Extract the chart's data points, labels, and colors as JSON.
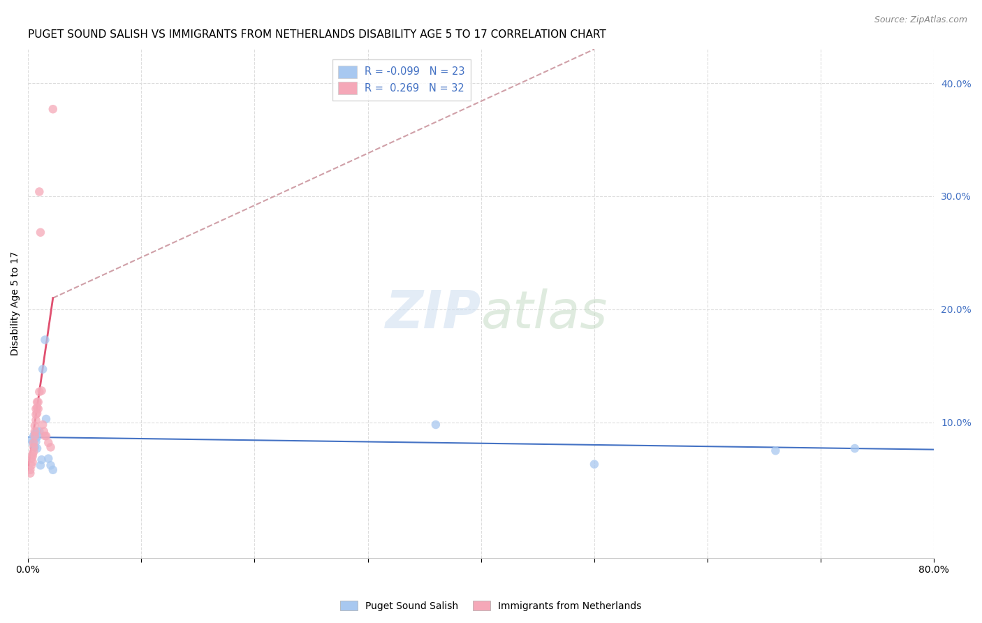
{
  "title": "PUGET SOUND SALISH VS IMMIGRANTS FROM NETHERLANDS DISABILITY AGE 5 TO 17 CORRELATION CHART",
  "source": "Source: ZipAtlas.com",
  "ylabel": "Disability Age 5 to 17",
  "xlabel": "",
  "xlim": [
    0,
    0.8
  ],
  "ylim": [
    -0.02,
    0.43
  ],
  "xticks": [
    0.0,
    0.1,
    0.2,
    0.3,
    0.4,
    0.5,
    0.6,
    0.7,
    0.8
  ],
  "xtick_labels_show": [
    "0.0%",
    "",
    "",
    "",
    "",
    "",
    "",
    "",
    "80.0%"
  ],
  "yticks_right": [
    0.1,
    0.2,
    0.3,
    0.4
  ],
  "background_color": "#ffffff",
  "grid_color": "#dddddd",
  "series": [
    {
      "name": "Puget Sound Salish",
      "color": "#a8c8f0",
      "R": -0.099,
      "N": 23,
      "x": [
        0.003,
        0.004,
        0.005,
        0.006,
        0.006,
        0.007,
        0.007,
        0.008,
        0.008,
        0.009,
        0.01,
        0.011,
        0.012,
        0.013,
        0.015,
        0.016,
        0.018,
        0.02,
        0.022,
        0.36,
        0.5,
        0.66,
        0.73
      ],
      "y": [
        0.085,
        0.082,
        0.088,
        0.09,
        0.078,
        0.086,
        0.083,
        0.092,
        0.077,
        0.088,
        0.092,
        0.062,
        0.067,
        0.147,
        0.173,
        0.103,
        0.068,
        0.062,
        0.058,
        0.098,
        0.063,
        0.075,
        0.077
      ]
    },
    {
      "name": "Immigrants from Netherlands",
      "color": "#f5a8b8",
      "R": 0.269,
      "N": 32,
      "x": [
        0.002,
        0.002,
        0.003,
        0.003,
        0.004,
        0.004,
        0.004,
        0.005,
        0.005,
        0.005,
        0.006,
        0.006,
        0.006,
        0.007,
        0.007,
        0.007,
        0.008,
        0.008,
        0.008,
        0.009,
        0.009,
        0.01,
        0.01,
        0.011,
        0.012,
        0.013,
        0.014,
        0.015,
        0.016,
        0.018,
        0.02,
        0.022
      ],
      "y": [
        0.058,
        0.055,
        0.062,
        0.068,
        0.07,
        0.065,
        0.072,
        0.082,
        0.078,
        0.074,
        0.088,
        0.092,
        0.097,
        0.102,
        0.107,
        0.112,
        0.108,
        0.113,
        0.118,
        0.112,
        0.118,
        0.127,
        0.304,
        0.268,
        0.128,
        0.098,
        0.092,
        0.088,
        0.088,
        0.082,
        0.078,
        0.377
      ]
    }
  ],
  "trend_blue": {
    "x_start": 0.0,
    "x_end": 0.8,
    "y_start": 0.087,
    "y_end": 0.076,
    "color": "#4472c4",
    "linewidth": 1.5,
    "linestyle": "solid"
  },
  "trend_pink_solid": {
    "x_start": 0.0,
    "x_end": 0.022,
    "y_start": 0.058,
    "y_end": 0.21,
    "color": "#e05070",
    "linewidth": 2.0,
    "linestyle": "solid"
  },
  "trend_pink_dashed": {
    "x_start": 0.022,
    "x_end": 0.5,
    "y_start": 0.21,
    "y_end": 0.43,
    "color": "#d0a0a8",
    "linewidth": 1.5,
    "linestyle": "dashed"
  },
  "legend_entries": [
    {
      "color": "#a8c8f0",
      "R_label": "R = ",
      "R_val": "-0.099",
      "N_label": "N = ",
      "N_val": "23"
    },
    {
      "color": "#f5a8b8",
      "R_label": "R =  ",
      "R_val": "0.269",
      "N_label": "N = ",
      "N_val": "32"
    }
  ],
  "title_fontsize": 11,
  "source_fontsize": 9,
  "label_fontsize": 10,
  "tick_fontsize": 10,
  "marker_size": 9,
  "marker_alpha": 0.75
}
